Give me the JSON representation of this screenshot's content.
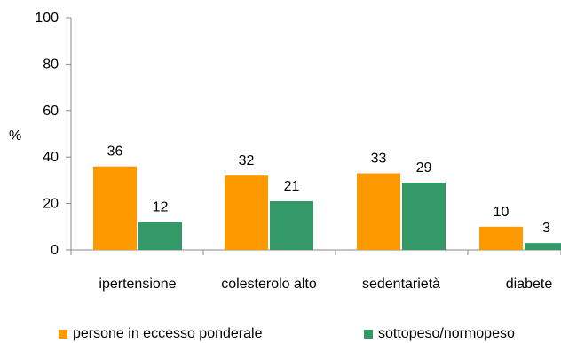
{
  "chart_data": {
    "type": "bar",
    "categories": [
      "ipertensione",
      "colesterolo alto",
      "sedentarietà",
      "diabete"
    ],
    "series": [
      {
        "name": "persone in eccesso ponderale",
        "values": [
          36,
          32,
          33,
          10
        ],
        "color": "#FF9900"
      },
      {
        "name": "sottopeso/normopeso",
        "values": [
          12,
          21,
          29,
          3
        ],
        "color": "#339966"
      }
    ],
    "ylabel": "%",
    "ylim": [
      0,
      100
    ],
    "yticks": [
      0,
      20,
      40,
      60,
      80,
      100
    ],
    "grid": false,
    "legend": "bottom"
  }
}
